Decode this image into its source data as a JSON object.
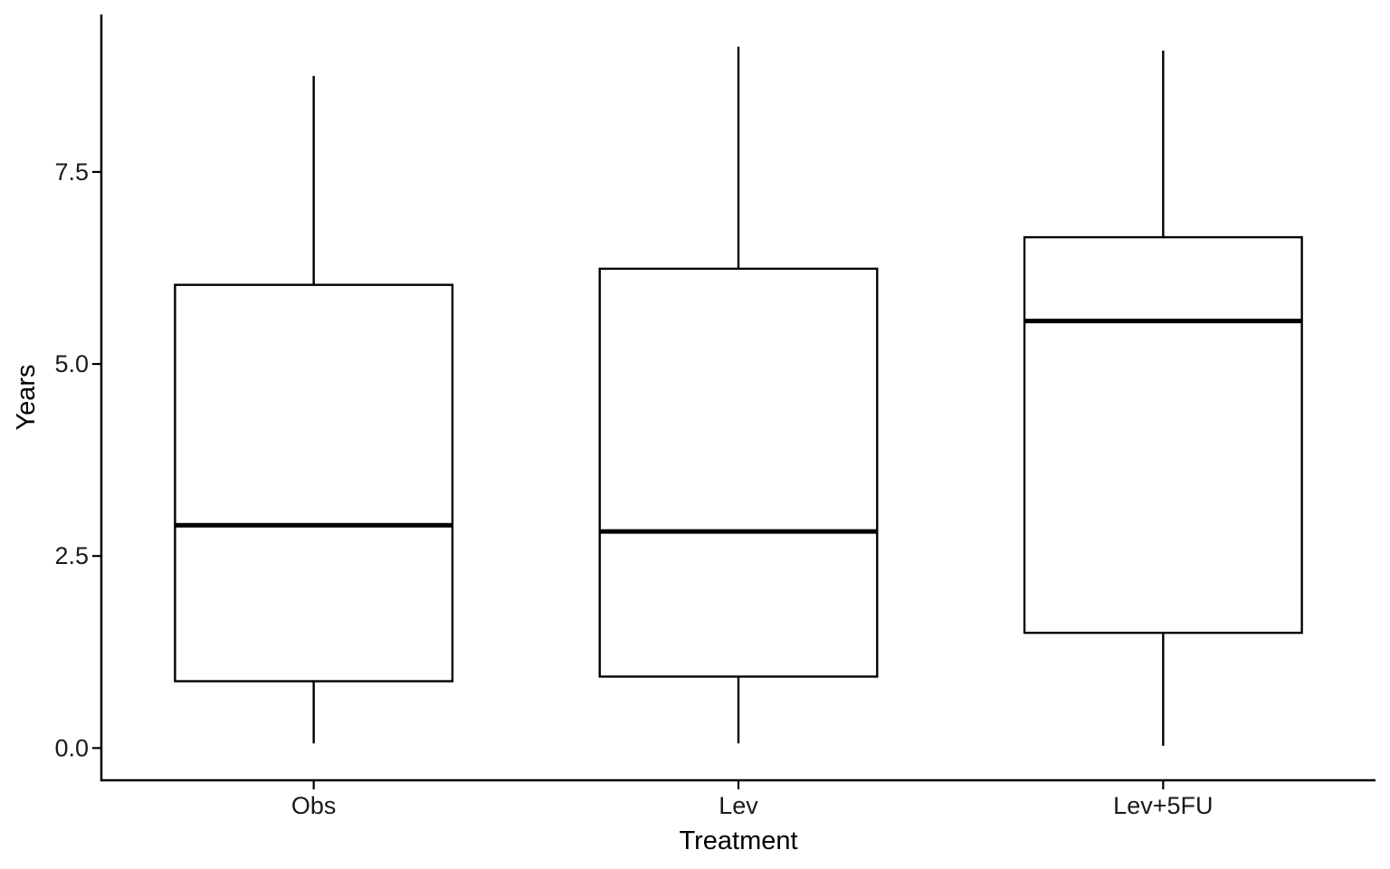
{
  "chart_data": {
    "type": "boxplot",
    "title": "",
    "xlabel": "Treatment",
    "ylabel": "Years",
    "categories": [
      "Obs",
      "Lev",
      "Lev+5FU"
    ],
    "boxes": [
      {
        "category": "Obs",
        "whisker_low": 0.06,
        "q1": 0.87,
        "median": 2.9,
        "q3": 6.03,
        "whisker_high": 8.75
      },
      {
        "category": "Lev",
        "whisker_low": 0.06,
        "q1": 0.93,
        "median": 2.82,
        "q3": 6.24,
        "whisker_high": 9.13
      },
      {
        "category": "Lev+5FU",
        "whisker_low": 0.03,
        "q1": 1.5,
        "median": 5.56,
        "q3": 6.65,
        "whisker_high": 9.08
      }
    ],
    "ylim": [
      -0.42,
      9.55
    ],
    "yticks": [
      0.0,
      2.5,
      5.0,
      7.5
    ],
    "ytick_labels": [
      "0.0",
      "2.5",
      "5.0",
      "7.5"
    ],
    "grid": false,
    "legend": "none",
    "colors": {
      "box_fill": "#ffffff",
      "stroke": "#000000"
    }
  }
}
